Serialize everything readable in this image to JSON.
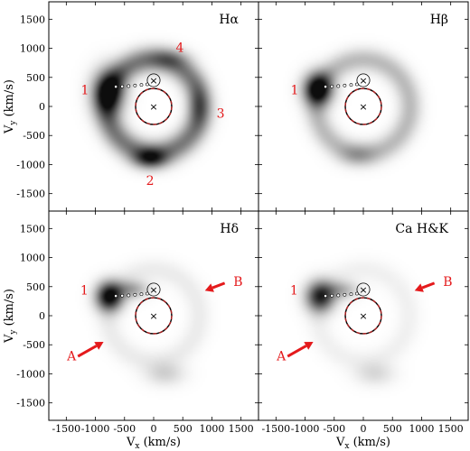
{
  "colors": {
    "annotation": "#e41a1c",
    "frame": "#000000",
    "emission": "#000000",
    "primary_dashed": "#b22222"
  },
  "chart_data": {
    "type": "heatmap",
    "xlabel_main": "V",
    "xlabel_sub": "x",
    "xlabel_unit": "(km/s)",
    "ylabel_main": "V",
    "ylabel_sub": "y",
    "ylabel_unit": "(km/s)",
    "xlim": [
      -1800,
      1800
    ],
    "ylim": [
      -1800,
      1800
    ],
    "xticks": [
      -1500,
      -1000,
      -500,
      0,
      500,
      1000,
      1500
    ],
    "yticks": [
      -1500,
      -1000,
      -500,
      0,
      500,
      1000,
      1500
    ],
    "panels": [
      {
        "label": "Hα",
        "ring": {
          "center": [
            0,
            0
          ],
          "radius": 800,
          "width": 150,
          "strength": 0.55
        },
        "blobs": [
          {
            "x": -780,
            "y": 250,
            "sx": 190,
            "sy": 260,
            "a": 0.8
          },
          {
            "x": -60,
            "y": -900,
            "sx": 200,
            "sy": 120,
            "a": 0.6
          },
          {
            "x": 770,
            "y": 0,
            "sx": 120,
            "sy": 230,
            "a": 0.25
          },
          {
            "x": 280,
            "y": 820,
            "sx": 230,
            "sy": 120,
            "a": 0.22
          }
        ],
        "annotations": [
          {
            "text": "1",
            "x": -1180,
            "y": 290
          },
          {
            "text": "2",
            "x": -60,
            "y": -1270
          },
          {
            "text": "3",
            "x": 1150,
            "y": -120
          },
          {
            "text": "4",
            "x": 450,
            "y": 1020
          }
        ]
      },
      {
        "label": "Hβ",
        "ring": {
          "center": [
            0,
            0
          ],
          "radius": 800,
          "width": 140,
          "strength": 0.28
        },
        "blobs": [
          {
            "x": -780,
            "y": 300,
            "sx": 170,
            "sy": 190,
            "a": 1.0
          },
          {
            "x": -100,
            "y": -850,
            "sx": 220,
            "sy": 130,
            "a": 0.2
          }
        ],
        "annotations": [
          {
            "text": "1",
            "x": -1180,
            "y": 290
          }
        ]
      },
      {
        "label": "Hδ",
        "ring": {
          "center": [
            0,
            0
          ],
          "radius": 780,
          "width": 140,
          "strength": 0.08
        },
        "blobs": [
          {
            "x": -760,
            "y": 330,
            "sx": 160,
            "sy": 170,
            "a": 1.0
          },
          {
            "x": -380,
            "y": 450,
            "sx": 200,
            "sy": 110,
            "a": 0.35
          },
          {
            "x": 200,
            "y": -1000,
            "sx": 230,
            "sy": 140,
            "a": 0.18
          }
        ],
        "annotations": [
          {
            "text": "1",
            "x": -1190,
            "y": 440
          },
          {
            "text": "A",
            "x": -1410,
            "y": -690
          },
          {
            "text": "B",
            "x": 1450,
            "y": 590
          }
        ],
        "arrows": [
          {
            "from": [
              -1300,
              -700
            ],
            "to": [
              -860,
              -450
            ]
          },
          {
            "from": [
              1220,
              560
            ],
            "to": [
              880,
              430
            ]
          }
        ]
      },
      {
        "label": "Ca H&K",
        "ring": {
          "center": [
            0,
            0
          ],
          "radius": 780,
          "width": 140,
          "strength": 0.06
        },
        "blobs": [
          {
            "x": -740,
            "y": 330,
            "sx": 170,
            "sy": 180,
            "a": 0.85
          },
          {
            "x": -380,
            "y": 440,
            "sx": 200,
            "sy": 110,
            "a": 0.3
          },
          {
            "x": 200,
            "y": -1000,
            "sx": 230,
            "sy": 140,
            "a": 0.15
          }
        ],
        "annotations": [
          {
            "text": "1",
            "x": -1190,
            "y": 440
          },
          {
            "text": "A",
            "x": -1410,
            "y": -690
          },
          {
            "text": "B",
            "x": 1450,
            "y": 590
          }
        ],
        "arrows": [
          {
            "from": [
              -1300,
              -700
            ],
            "to": [
              -860,
              -450
            ]
          },
          {
            "from": [
              1220,
              560
            ],
            "to": [
              880,
              430
            ]
          }
        ]
      }
    ],
    "overlay": {
      "primary_center": [
        0,
        0
      ],
      "primary_radius": 310,
      "secondary_center": [
        0,
        450
      ],
      "secondary_radius": 110,
      "stream_points": [
        [
          -110,
          380
        ],
        [
          -210,
          370
        ],
        [
          -320,
          360
        ],
        [
          -430,
          350
        ],
        [
          -540,
          345
        ],
        [
          -650,
          340
        ]
      ]
    }
  }
}
